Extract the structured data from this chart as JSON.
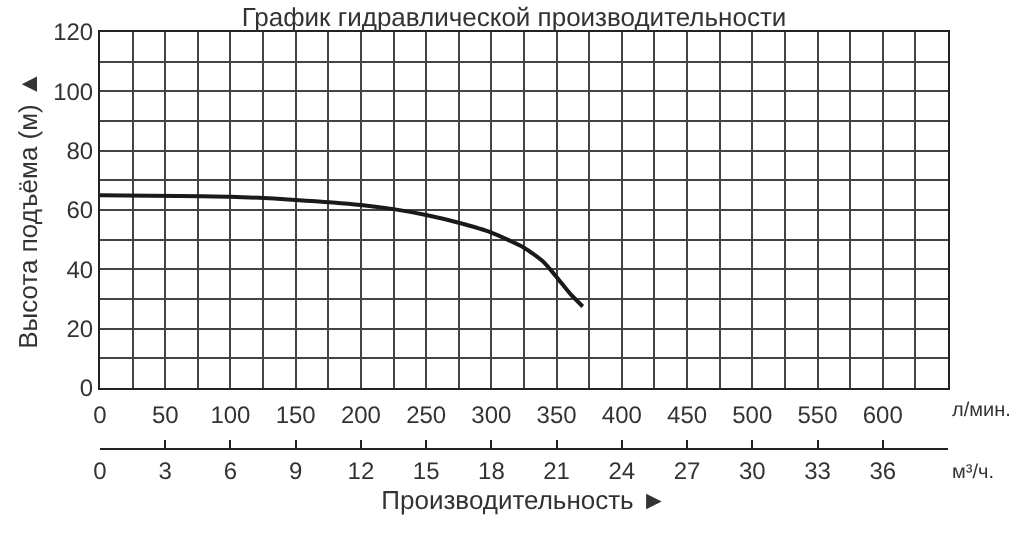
{
  "chart_data": {
    "type": "line",
    "title": "График гидравлической производительности",
    "xlabel": "Производительность ►",
    "ylabel": "Высота подъёма (м) ▲",
    "x": [
      0,
      100,
      150,
      200,
      225,
      250,
      275,
      300,
      325,
      340,
      350,
      360,
      370
    ],
    "series": [
      {
        "color": "#1a1a1a",
        "values": [
          65,
          64.5,
          63.4,
          61.7,
          60.3,
          58.3,
          55.7,
          52.4,
          47.3,
          42.5,
          37.4,
          32,
          27.5
        ]
      }
    ],
    "xlim": [
      0,
      650
    ],
    "xticks": [
      0,
      50,
      100,
      150,
      200,
      250,
      300,
      350,
      400,
      450,
      500,
      550,
      600
    ],
    "x2lim": [
      0,
      39
    ],
    "x2ticks": [
      0,
      3,
      6,
      9,
      12,
      15,
      18,
      21,
      24,
      27,
      30,
      33,
      36
    ],
    "ylim": [
      0,
      120
    ],
    "yticks": [
      0,
      20,
      40,
      60,
      80,
      100,
      120
    ],
    "annotations": [
      "л/мин.",
      "м³/ч."
    ],
    "grid": true,
    "marker": "none",
    "line_style": "solid"
  }
}
